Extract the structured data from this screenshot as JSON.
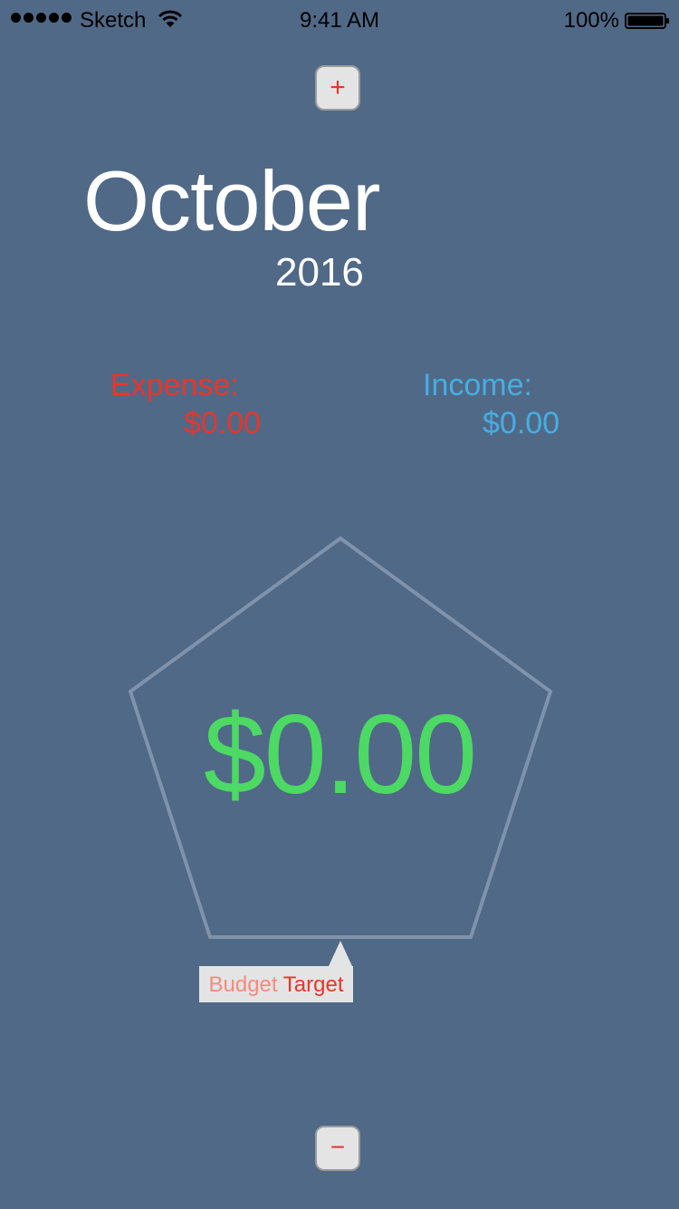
{
  "status_bar": {
    "carrier": "Sketch",
    "time": "9:41 AM",
    "battery": "100%",
    "signal_icon": "signal-dots-icon",
    "wifi_icon": "wifi-icon",
    "battery_icon": "battery-icon"
  },
  "controls": {
    "plus_label": "+",
    "minus_label": "−"
  },
  "date": {
    "month": "October",
    "year": "2016"
  },
  "summary": {
    "expense_label": "Expense:",
    "expense_value": "$0.00",
    "income_label": "Income:",
    "income_value": "$0.00"
  },
  "balance": {
    "amount": "$0.00"
  },
  "budget": {
    "word1": "Budget",
    "word2": "Target"
  },
  "colors": {
    "background": "#506987",
    "expense": "#e8352a",
    "income": "#48ade2",
    "balance": "#4cd964",
    "pentagon_stroke": "#8093ab"
  }
}
